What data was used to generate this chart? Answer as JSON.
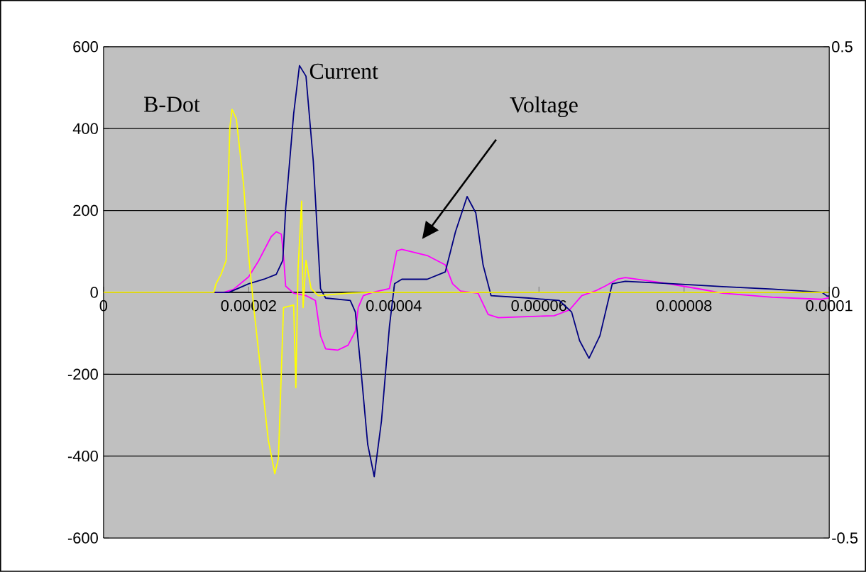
{
  "chart_data": {
    "type": "line",
    "series": [
      {
        "name": "Voltage",
        "color": "#ff00ff",
        "x": [
          0,
          1.66e-05,
          1.79e-05,
          2e-05,
          2.14e-05,
          2.31e-05,
          2.38e-05,
          2.45e-05,
          2.48e-05,
          2.51e-05,
          2.62e-05,
          2.79e-05,
          2.92e-05,
          2.99e-05,
          3.06e-05,
          3.23e-05,
          3.37e-05,
          3.47e-05,
          3.51e-05,
          3.58e-05,
          3.71e-05,
          3.94e-05,
          4.04e-05,
          4.11e-05,
          4.46e-05,
          4.71e-05,
          4.81e-05,
          4.92e-05,
          5.16e-05,
          5.3e-05,
          5.44e-05,
          6.21e-05,
          6.42e-05,
          6.59e-05,
          6.77e-05,
          6.91e-05,
          7.08e-05,
          7.19e-05,
          7.71e-05,
          8.19e-05,
          8.53e-05,
          9.22e-05,
          9.9e-05,
          9.97e-05,
          0.0001
        ],
        "values": [
          0,
          0,
          7,
          38,
          78,
          136,
          148,
          142,
          90,
          15,
          -2,
          -8,
          -20,
          -106,
          -138,
          -141,
          -129,
          -95,
          -37,
          -8,
          0,
          9,
          101,
          105,
          90,
          67,
          21,
          3,
          -2,
          -54,
          -62,
          -57,
          -43,
          -8,
          3,
          15,
          32,
          36,
          23,
          9,
          -2,
          -12,
          -17,
          -14,
          -14
        ]
      },
      {
        "name": "Current",
        "color": "#000080",
        "x": [
          0,
          1.73e-05,
          2e-05,
          2.21e-05,
          2.38e-05,
          2.47e-05,
          2.51e-05,
          2.62e-05,
          2.7e-05,
          2.79e-05,
          2.89e-05,
          2.99e-05,
          3.06e-05,
          3.4e-05,
          3.47e-05,
          3.54e-05,
          3.64e-05,
          3.73e-05,
          3.83e-05,
          3.94e-05,
          4.01e-05,
          4.11e-05,
          4.46e-05,
          4.71e-05,
          4.85e-05,
          5.01e-05,
          5.13e-05,
          5.23e-05,
          5.34e-05,
          5.86e-05,
          6.28e-05,
          6.45e-05,
          6.56e-05,
          6.69e-05,
          6.84e-05,
          7.01e-05,
          7.19e-05,
          7.85e-05,
          8.53e-05,
          9.22e-05,
          9.9e-05,
          9.97e-05,
          0.0001
        ],
        "values": [
          0,
          0,
          21,
          32,
          44,
          78,
          205,
          436,
          554,
          528,
          321,
          9,
          -14,
          -20,
          -48,
          -175,
          -371,
          -450,
          -314,
          -83,
          21,
          32,
          32,
          50,
          148,
          234,
          194,
          67,
          -8,
          -14,
          -20,
          -48,
          -118,
          -161,
          -106,
          21,
          27,
          21,
          14,
          8,
          0,
          -9,
          -9
        ]
      },
      {
        "name": "B-Dot",
        "color": "#ffff00",
        "x": [
          0,
          1.52e-05,
          1.55e-05,
          1.62e-05,
          1.69e-05,
          1.74e-05,
          1.77e-05,
          1.83e-05,
          1.93e-05,
          2e-05,
          2.07e-05,
          2.17e-05,
          2.27e-05,
          2.36e-05,
          2.41e-05,
          2.48e-05,
          2.62e-05,
          2.65e-05,
          2.68e-05,
          2.73e-05,
          2.75e-05,
          2.79e-05,
          2.86e-05,
          2.96e-05,
          3.37e-05,
          3.71e-05,
          0.0001
        ],
        "values": [
          0,
          0,
          21,
          44,
          78,
          401,
          447,
          424,
          263,
          90,
          -37,
          -198,
          -360,
          -443,
          -406,
          -37,
          -31,
          -233,
          55,
          223,
          -37,
          78,
          9,
          -8,
          -2,
          0,
          0
        ]
      }
    ],
    "xlim": [
      0,
      0.0001
    ],
    "xticks": [
      0,
      {
        "value": 2e-05,
        "label": "0.00002"
      },
      {
        "value": 4e-05,
        "label": "0.00004"
      },
      {
        "value": 6e-05,
        "label": "0.00006"
      },
      {
        "value": 8e-05,
        "label": "0.00008"
      },
      {
        "value": 0.0001,
        "label": "0.0001"
      }
    ],
    "ylim": [
      -600,
      600
    ],
    "yticks": [
      -600,
      -400,
      -200,
      0,
      200,
      400,
      600
    ],
    "y2lim": [
      -0.5,
      0.5
    ],
    "y2ticks": [
      -0.5,
      0,
      0.5
    ],
    "grid": "y",
    "legend": false,
    "marker": "none",
    "line_style": "solid"
  }
}
